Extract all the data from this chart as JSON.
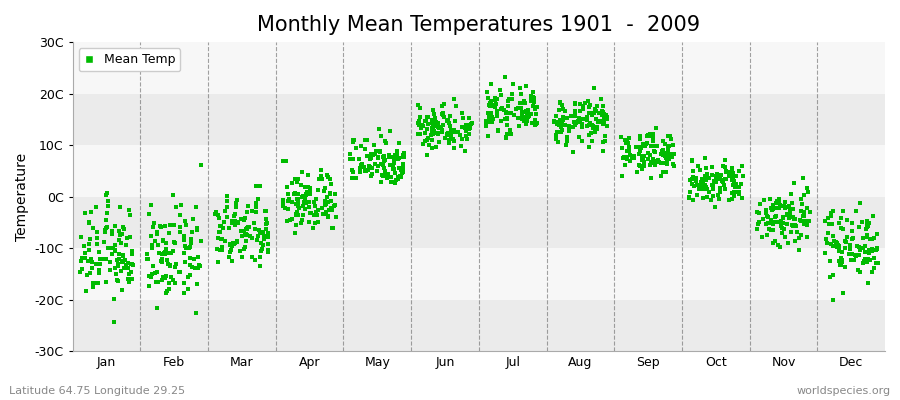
{
  "title": "Monthly Mean Temperatures 1901  -  2009",
  "ylabel": "Temperature",
  "xlabel_months": [
    "Jan",
    "Feb",
    "Mar",
    "Apr",
    "May",
    "Jun",
    "Jul",
    "Aug",
    "Sep",
    "Oct",
    "Nov",
    "Dec"
  ],
  "month_means": [
    -11.0,
    -11.5,
    -7.0,
    -1.0,
    7.0,
    13.5,
    16.5,
    14.5,
    8.5,
    2.5,
    -4.0,
    -9.0
  ],
  "month_stds": [
    4.5,
    4.5,
    3.5,
    3.0,
    2.5,
    2.2,
    2.0,
    2.2,
    2.0,
    2.2,
    3.0,
    3.5
  ],
  "ylim": [
    -30,
    30
  ],
  "yticks": [
    -30,
    -20,
    -10,
    0,
    10,
    20,
    30
  ],
  "ytick_labels": [
    "-30C",
    "-20C",
    "-10C",
    "0C",
    "10C",
    "20C",
    "30C"
  ],
  "n_years": 109,
  "dot_color": "#00bb00",
  "dot_size": 7,
  "marker": "s",
  "background_color": "#ffffff",
  "band_colors": [
    "#ebebeb",
    "#f7f7f7"
  ],
  "grid_color": "#666666",
  "legend_label": "Mean Temp",
  "footer_left": "Latitude 64.75 Longitude 29.25",
  "footer_right": "worldspecies.org",
  "title_fontsize": 15,
  "axis_label_fontsize": 10,
  "tick_fontsize": 9,
  "footer_fontsize": 8
}
